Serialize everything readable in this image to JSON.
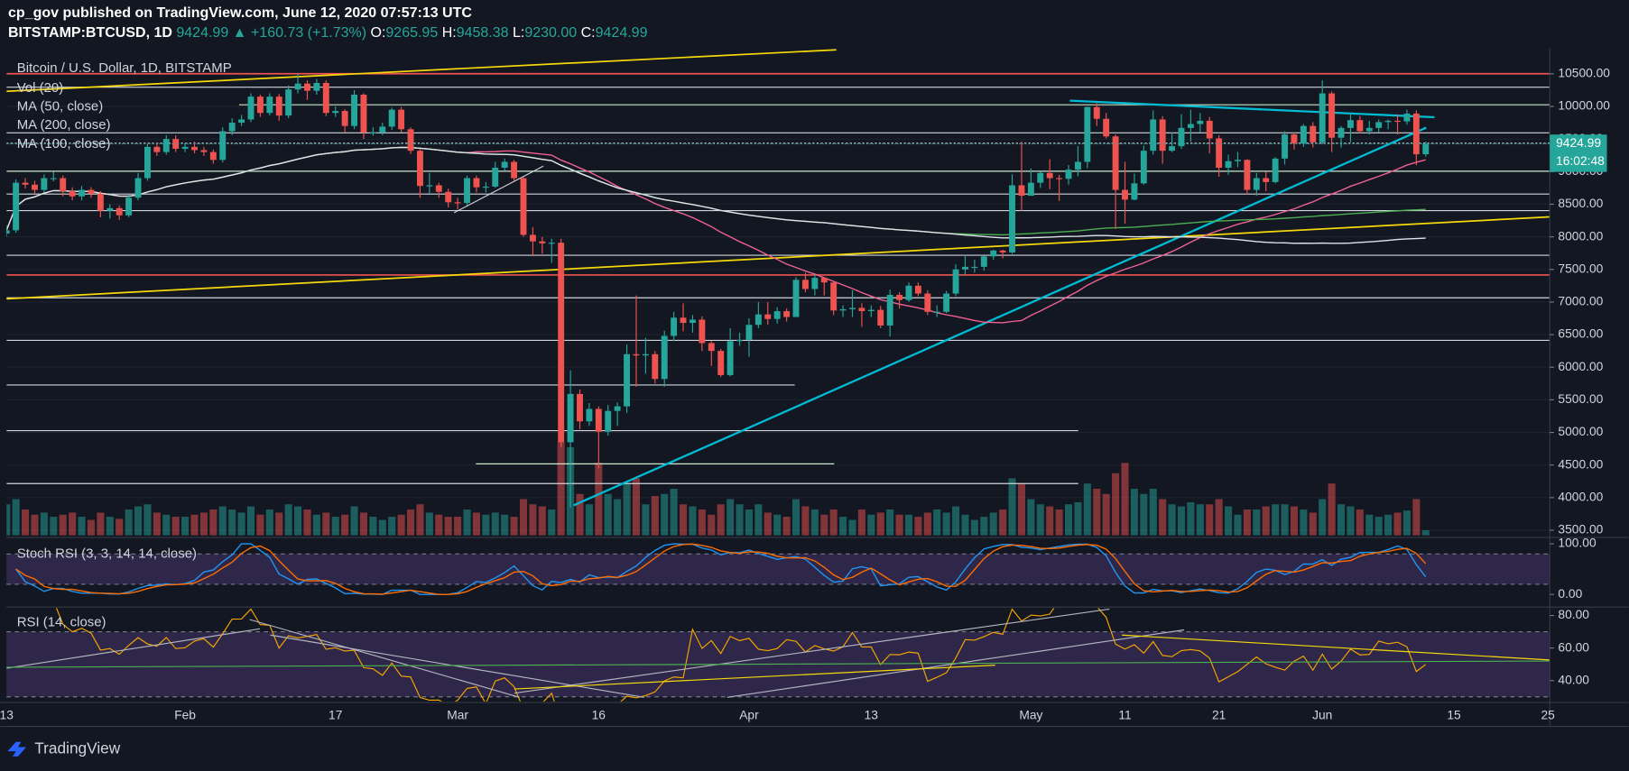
{
  "header": {
    "publisher": "cp_gov published on TradingView.com, June 12, 2020 07:57:13 UTC",
    "symbol": "BITSTAMP:BTCUSD, 1D",
    "last": "9424.99",
    "change": "▲ +160.73 (+1.73%)",
    "o_label": "O:",
    "o": "9265.95",
    "h_label": "H:",
    "h": "9458.38",
    "l_label": "L:",
    "l": "9230.00",
    "c_label": "C:",
    "c": "9424.99"
  },
  "chart_data": {
    "type": "candlestick",
    "title": "Bitcoin / U.S. Dollar, 1D, BITSTAMP",
    "volume_title": "Vol (20)",
    "moving_averages": [
      {
        "name": "MA (50, close)",
        "period": 50,
        "color": "#f06292"
      },
      {
        "name": "MA (200, close)",
        "period": 200,
        "color": "#4caf50"
      },
      {
        "name": "MA (100, close)",
        "period": 100,
        "color": "#e0e3eb"
      }
    ],
    "up_color": "#26a69a",
    "down_color": "#ef5350",
    "candles": [
      [
        8050,
        8180,
        8000,
        8100
      ],
      [
        8100,
        8880,
        8060,
        8830
      ],
      [
        8830,
        8900,
        8740,
        8800
      ],
      [
        8800,
        8860,
        8660,
        8720
      ],
      [
        8720,
        8960,
        8680,
        8900
      ],
      [
        8900,
        9000,
        8850,
        8900
      ],
      [
        8900,
        8940,
        8620,
        8700
      ],
      [
        8700,
        8760,
        8560,
        8620
      ],
      [
        8620,
        8780,
        8560,
        8720
      ],
      [
        8720,
        8760,
        8600,
        8660
      ],
      [
        8660,
        8700,
        8300,
        8400
      ],
      [
        8400,
        8500,
        8280,
        8440
      ],
      [
        8440,
        8480,
        8260,
        8330
      ],
      [
        8330,
        8650,
        8300,
        8600
      ],
      [
        8600,
        8980,
        8560,
        8900
      ],
      [
        8900,
        9420,
        8860,
        9380
      ],
      [
        9380,
        9440,
        9240,
        9300
      ],
      [
        9300,
        9560,
        9260,
        9500
      ],
      [
        9500,
        9560,
        9300,
        9350
      ],
      [
        9350,
        9440,
        9300,
        9380
      ],
      [
        9380,
        9460,
        9280,
        9330
      ],
      [
        9330,
        9380,
        9240,
        9300
      ],
      [
        9300,
        9340,
        9120,
        9180
      ],
      [
        9180,
        9680,
        9140,
        9620
      ],
      [
        9620,
        9820,
        9560,
        9750
      ],
      [
        9750,
        9870,
        9700,
        9800
      ],
      [
        9800,
        10200,
        9760,
        10150
      ],
      [
        10150,
        10180,
        9840,
        9900
      ],
      [
        9900,
        10200,
        9860,
        10150
      ],
      [
        10150,
        10190,
        9780,
        9860
      ],
      [
        9860,
        10320,
        9820,
        10260
      ],
      [
        10260,
        10500,
        10200,
        10350
      ],
      [
        10350,
        10400,
        10100,
        10240
      ],
      [
        10240,
        10420,
        10180,
        10360
      ],
      [
        10360,
        10400,
        9850,
        9900
      ],
      [
        9900,
        10000,
        9840,
        9930
      ],
      [
        9930,
        9960,
        9600,
        9700
      ],
      [
        9700,
        10250,
        9650,
        10180
      ],
      [
        10180,
        10200,
        9500,
        9600
      ],
      [
        9600,
        9680,
        9550,
        9600
      ],
      [
        9600,
        9750,
        9560,
        9690
      ],
      [
        9690,
        9980,
        9640,
        9950
      ],
      [
        9950,
        9990,
        9600,
        9650
      ],
      [
        9650,
        9680,
        9270,
        9320
      ],
      [
        9320,
        9340,
        8600,
        8780
      ],
      [
        8780,
        8980,
        8660,
        8790
      ],
      [
        8790,
        8830,
        8600,
        8690
      ],
      [
        8690,
        8740,
        8450,
        8530
      ],
      [
        8530,
        8600,
        8420,
        8520
      ],
      [
        8520,
        8940,
        8480,
        8900
      ],
      [
        8900,
        8940,
        8680,
        8760
      ],
      [
        8760,
        8840,
        8680,
        8770
      ],
      [
        8770,
        9150,
        8750,
        9060
      ],
      [
        9060,
        9200,
        9020,
        9150
      ],
      [
        9150,
        9180,
        8850,
        8900
      ],
      [
        8900,
        8920,
        8000,
        8030
      ],
      [
        8030,
        8150,
        7700,
        7930
      ],
      [
        7930,
        8000,
        7740,
        7900
      ],
      [
        7900,
        7970,
        7600,
        7910
      ],
      [
        7910,
        7970,
        4776,
        4850
      ],
      [
        4850,
        5950,
        3850,
        5590
      ],
      [
        5590,
        5660,
        5050,
        5170
      ],
      [
        5170,
        5450,
        5100,
        5360
      ],
      [
        5360,
        5400,
        4450,
        5010
      ],
      [
        5010,
        5420,
        4950,
        5330
      ],
      [
        5330,
        5460,
        5100,
        5400
      ],
      [
        5400,
        6350,
        5300,
        6200
      ],
      [
        6200,
        7100,
        5700,
        6180
      ],
      [
        6180,
        6450,
        5900,
        6200
      ],
      [
        6200,
        6250,
        5750,
        5820
      ],
      [
        5820,
        6560,
        5700,
        6480
      ],
      [
        6480,
        6850,
        6400,
        6760
      ],
      [
        6760,
        6980,
        6550,
        6680
      ],
      [
        6680,
        6800,
        6530,
        6730
      ],
      [
        6730,
        6780,
        6250,
        6370
      ],
      [
        6370,
        6400,
        6020,
        6250
      ],
      [
        6250,
        6280,
        5850,
        5880
      ],
      [
        5880,
        6600,
        5860,
        6400
      ],
      [
        6400,
        6530,
        6330,
        6420
      ],
      [
        6420,
        6750,
        6160,
        6650
      ],
      [
        6650,
        7000,
        6600,
        6810
      ],
      [
        6810,
        7000,
        6650,
        6740
      ],
      [
        6740,
        6920,
        6670,
        6860
      ],
      [
        6860,
        6900,
        6700,
        6770
      ],
      [
        6770,
        7380,
        6770,
        7340
      ],
      [
        7340,
        7450,
        7150,
        7200
      ],
      [
        7200,
        7420,
        7100,
        7370
      ],
      [
        7370,
        7380,
        7100,
        7300
      ],
      [
        7300,
        7300,
        6800,
        6870
      ],
      [
        6870,
        6950,
        6770,
        6890
      ],
      [
        6890,
        7180,
        6770,
        6910
      ],
      [
        6910,
        6980,
        6620,
        6860
      ],
      [
        6860,
        6950,
        6770,
        6880
      ],
      [
        6880,
        6940,
        6600,
        6640
      ],
      [
        6640,
        7190,
        6470,
        7110
      ],
      [
        7110,
        7150,
        6900,
        7030
      ],
      [
        7030,
        7300,
        7000,
        7250
      ],
      [
        7250,
        7300,
        7090,
        7130
      ],
      [
        7130,
        7180,
        6800,
        6850
      ],
      [
        6850,
        6950,
        6770,
        6850
      ],
      [
        6850,
        7170,
        6830,
        7130
      ],
      [
        7130,
        7580,
        7090,
        7500
      ],
      [
        7500,
        7720,
        7420,
        7540
      ],
      [
        7540,
        7650,
        7450,
        7540
      ],
      [
        7540,
        7710,
        7480,
        7700
      ],
      [
        7700,
        7800,
        7650,
        7790
      ],
      [
        7790,
        7800,
        7670,
        7760
      ],
      [
        7760,
        8960,
        7740,
        8790
      ],
      [
        8790,
        9460,
        8400,
        8630
      ],
      [
        8630,
        9050,
        8630,
        8830
      ],
      [
        8830,
        9000,
        8750,
        8980
      ],
      [
        8980,
        9190,
        8730,
        8900
      ],
      [
        8900,
        8950,
        8550,
        8890
      ],
      [
        8890,
        9100,
        8800,
        9030
      ],
      [
        9030,
        9390,
        8930,
        9150
      ],
      [
        9150,
        10000,
        9050,
        9990
      ],
      [
        9990,
        10050,
        9700,
        9810
      ],
      [
        9810,
        9900,
        9510,
        9540
      ],
      [
        9540,
        9570,
        8120,
        8720
      ],
      [
        8720,
        9150,
        8200,
        8570
      ],
      [
        8570,
        8970,
        8560,
        8820
      ],
      [
        8820,
        9400,
        8800,
        9320
      ],
      [
        9320,
        9940,
        9260,
        9800
      ],
      [
        9800,
        9850,
        9120,
        9320
      ],
      [
        9320,
        9600,
        9300,
        9390
      ],
      [
        9390,
        9880,
        9350,
        9670
      ],
      [
        9670,
        9950,
        9460,
        9730
      ],
      [
        9730,
        9900,
        9600,
        9780
      ],
      [
        9780,
        9840,
        9280,
        9510
      ],
      [
        9510,
        9560,
        8920,
        9060
      ],
      [
        9060,
        9260,
        8950,
        9160
      ],
      [
        9160,
        9300,
        9070,
        9180
      ],
      [
        9180,
        9190,
        8650,
        8720
      ],
      [
        8720,
        8980,
        8630,
        8900
      ],
      [
        8900,
        9000,
        8700,
        8840
      ],
      [
        8840,
        9220,
        8820,
        9200
      ],
      [
        9200,
        9620,
        9110,
        9570
      ],
      [
        9570,
        9600,
        9340,
        9430
      ],
      [
        9430,
        9730,
        9380,
        9700
      ],
      [
        9700,
        9760,
        9370,
        9450
      ],
      [
        9450,
        10400,
        9420,
        10200
      ],
      [
        10200,
        10230,
        9300,
        9520
      ],
      [
        9520,
        9700,
        9370,
        9670
      ],
      [
        9670,
        9880,
        9450,
        9790
      ],
      [
        9790,
        9850,
        9590,
        9620
      ],
      [
        9620,
        9780,
        9570,
        9670
      ],
      [
        9670,
        9800,
        9600,
        9760
      ],
      [
        9760,
        9800,
        9650,
        9780
      ],
      [
        9780,
        9880,
        9570,
        9770
      ],
      [
        9770,
        9950,
        9720,
        9890
      ],
      [
        9890,
        9940,
        9100,
        9265.95
      ],
      [
        9265.95,
        9458.38,
        9230,
        9424.99
      ]
    ],
    "volume": [
      30,
      35,
      25,
      20,
      22,
      18,
      20,
      22,
      18,
      15,
      22,
      18,
      16,
      25,
      28,
      30,
      22,
      20,
      18,
      18,
      20,
      22,
      25,
      28,
      25,
      22,
      28,
      20,
      25,
      22,
      30,
      28,
      25,
      20,
      22,
      18,
      20,
      28,
      22,
      18,
      15,
      18,
      20,
      25,
      30,
      22,
      20,
      18,
      18,
      25,
      22,
      20,
      22,
      20,
      18,
      35,
      30,
      28,
      25,
      90,
      85,
      40,
      30,
      70,
      40,
      35,
      50,
      55,
      30,
      38,
      40,
      45,
      30,
      28,
      25,
      20,
      30,
      35,
      30,
      25,
      30,
      22,
      20,
      18,
      35,
      28,
      25,
      20,
      25,
      18,
      15,
      25,
      20,
      22,
      25,
      20,
      20,
      18,
      22,
      25,
      22,
      28,
      20,
      15,
      18,
      22,
      25,
      55,
      50,
      35,
      30,
      28,
      25,
      30,
      32,
      50,
      45,
      40,
      60,
      70,
      45,
      40,
      45,
      35,
      30,
      28,
      32,
      30,
      30,
      35,
      28,
      20,
      25,
      25,
      28,
      30,
      30,
      28,
      25,
      22,
      35,
      50,
      30,
      28,
      25,
      20,
      18,
      20,
      22,
      24,
      35,
      5
    ],
    "xlim": [
      0,
      164.2
    ],
    "xticks": [
      {
        "value": 0,
        "label": "13"
      },
      {
        "value": 19,
        "label": "Feb"
      },
      {
        "value": 35,
        "label": "17"
      },
      {
        "value": 48,
        "label": "Mar"
      },
      {
        "value": 63,
        "label": "16"
      },
      {
        "value": 79,
        "label": "Apr"
      },
      {
        "value": 92,
        "label": "13"
      },
      {
        "value": 109,
        "label": "May"
      },
      {
        "value": 119,
        "label": "11"
      },
      {
        "value": 129,
        "label": "21"
      },
      {
        "value": 140,
        "label": "Jun"
      },
      {
        "value": 154,
        "label": "15"
      },
      {
        "value": 164,
        "label": "25"
      }
    ],
    "ylim": [
      3420,
      10900
    ],
    "yticks": [
      {
        "value": 10500,
        "label": "10500.00"
      },
      {
        "value": 10000,
        "label": "10000.00"
      },
      {
        "value": 9500,
        "label": "9500.00"
      },
      {
        "value": 9000,
        "label": "9000.00"
      },
      {
        "value": 8500,
        "label": "8500.00"
      },
      {
        "value": 8000,
        "label": "8000.00"
      },
      {
        "value": 7500,
        "label": "7500.00"
      },
      {
        "value": 7000,
        "label": "7000.00"
      },
      {
        "value": 6500,
        "label": "6500.00"
      },
      {
        "value": 6000,
        "label": "6000.00"
      },
      {
        "value": 5500,
        "label": "5500.00"
      },
      {
        "value": 5000,
        "label": "5000.00"
      },
      {
        "value": 4500,
        "label": "4500.00"
      },
      {
        "value": 4000,
        "label": "4000.00"
      },
      {
        "value": 3500,
        "label": "3500.00"
      }
    ],
    "grid": true,
    "countdown": "16:02:48"
  },
  "stoch_rsi": {
    "title": "Stoch RSI (3, 3, 14, 14, close)",
    "params": [
      3,
      3,
      14,
      14
    ],
    "ylim": [
      -23,
      112.5
    ],
    "yticks": [
      {
        "value": 100,
        "label": "100.00"
      },
      {
        "value": 0,
        "label": "0.00"
      }
    ],
    "bands": [
      20,
      80
    ],
    "k_color": "#2196f3",
    "d_color": "#ff6d00"
  },
  "rsi": {
    "title": "RSI (14, close)",
    "period": 14,
    "ylim": [
      26.5,
      85.2
    ],
    "yticks": [
      {
        "value": 80,
        "label": "80.00"
      },
      {
        "value": 60,
        "label": "60.00"
      },
      {
        "value": 40,
        "label": "40.00"
      }
    ],
    "bands": [
      30,
      70
    ],
    "color": "#f7a600"
  },
  "brand": "TradingView"
}
